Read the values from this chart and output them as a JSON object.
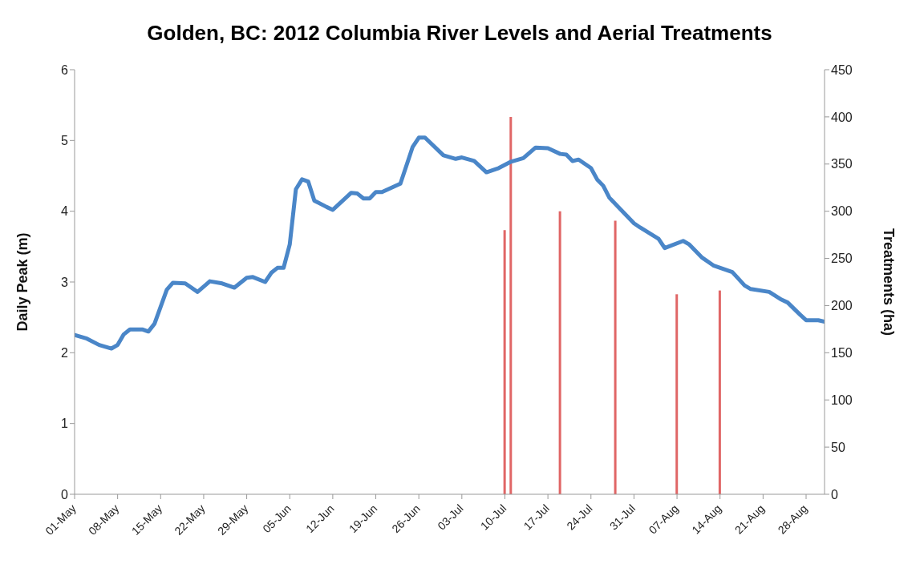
{
  "chart_data": {
    "type": "line",
    "title": "Golden, BC: 2012 Columbia River Levels and Aerial Treatments",
    "ylabel": "Daily Peak (m)",
    "y2label": "Treatments (ha)",
    "xlim": [
      "2012-05-01",
      "2012-08-31"
    ],
    "xticks": [
      {
        "value": "2012-05-01",
        "label": "01-May"
      },
      {
        "value": "2012-05-08",
        "label": "08-May"
      },
      {
        "value": "2012-05-15",
        "label": "15-May"
      },
      {
        "value": "2012-05-22",
        "label": "22-May"
      },
      {
        "value": "2012-05-29",
        "label": "29-May"
      },
      {
        "value": "2012-06-05",
        "label": "05-Jun"
      },
      {
        "value": "2012-06-12",
        "label": "12-Jun"
      },
      {
        "value": "2012-06-19",
        "label": "19-Jun"
      },
      {
        "value": "2012-06-26",
        "label": "26-Jun"
      },
      {
        "value": "2012-07-03",
        "label": "03-Jul"
      },
      {
        "value": "2012-07-10",
        "label": "10-Jul"
      },
      {
        "value": "2012-07-17",
        "label": "17-Jul"
      },
      {
        "value": "2012-07-24",
        "label": "24-Jul"
      },
      {
        "value": "2012-07-31",
        "label": "31-Jul"
      },
      {
        "value": "2012-08-07",
        "label": "07-Aug"
      },
      {
        "value": "2012-08-14",
        "label": "14-Aug"
      },
      {
        "value": "2012-08-21",
        "label": "21-Aug"
      },
      {
        "value": "2012-08-28",
        "label": "28-Aug"
      }
    ],
    "ylim": [
      0,
      6
    ],
    "yticks": [
      0,
      1,
      2,
      3,
      4,
      5,
      6
    ],
    "y2lim": [
      0,
      450
    ],
    "y2ticks": [
      0,
      50,
      100,
      150,
      200,
      250,
      300,
      350,
      400,
      450
    ],
    "series": [
      {
        "color": "#4a86c8",
        "x": [
          "2012-05-01",
          "2012-05-03",
          "2012-05-05",
          "2012-05-07",
          "2012-05-08",
          "2012-05-09",
          "2012-05-10",
          "2012-05-12",
          "2012-05-13",
          "2012-05-14",
          "2012-05-16",
          "2012-05-17",
          "2012-05-19",
          "2012-05-21",
          "2012-05-23",
          "2012-05-25",
          "2012-05-27",
          "2012-05-29",
          "2012-05-30",
          "2012-06-01",
          "2012-06-02",
          "2012-06-03",
          "2012-06-04",
          "2012-06-05",
          "2012-06-06",
          "2012-06-07",
          "2012-06-08",
          "2012-06-09",
          "2012-06-11",
          "2012-06-12",
          "2012-06-15",
          "2012-06-16",
          "2012-06-17",
          "2012-06-18",
          "2012-06-19",
          "2012-06-20",
          "2012-06-23",
          "2012-06-25",
          "2012-06-26",
          "2012-06-27",
          "2012-06-30",
          "2012-07-02",
          "2012-07-03",
          "2012-07-05",
          "2012-07-07",
          "2012-07-09",
          "2012-07-11",
          "2012-07-13",
          "2012-07-15",
          "2012-07-17",
          "2012-07-19",
          "2012-07-20",
          "2012-07-21",
          "2012-07-22",
          "2012-07-24",
          "2012-07-25",
          "2012-07-26",
          "2012-07-27",
          "2012-07-31",
          "2012-08-01",
          "2012-08-04",
          "2012-08-05",
          "2012-08-08",
          "2012-08-09",
          "2012-08-11",
          "2012-08-13",
          "2012-08-16",
          "2012-08-18",
          "2012-08-19",
          "2012-08-22",
          "2012-08-24",
          "2012-08-25",
          "2012-08-27",
          "2012-08-28",
          "2012-08-30",
          "2012-08-31"
        ],
        "values": [
          2.25,
          2.2,
          2.11,
          2.06,
          2.11,
          2.26,
          2.33,
          2.33,
          2.3,
          2.41,
          2.89,
          2.99,
          2.98,
          2.86,
          3.01,
          2.98,
          2.92,
          3.06,
          3.07,
          3.0,
          3.13,
          3.2,
          3.2,
          3.53,
          4.31,
          4.45,
          4.42,
          4.15,
          4.06,
          4.02,
          4.26,
          4.25,
          4.18,
          4.18,
          4.27,
          4.27,
          4.39,
          4.91,
          5.04,
          5.04,
          4.79,
          4.74,
          4.76,
          4.71,
          4.55,
          4.61,
          4.7,
          4.75,
          4.9,
          4.89,
          4.81,
          4.8,
          4.71,
          4.73,
          4.61,
          4.45,
          4.36,
          4.19,
          3.83,
          3.77,
          3.61,
          3.48,
          3.58,
          3.53,
          3.35,
          3.23,
          3.14,
          2.95,
          2.9,
          2.86,
          2.75,
          2.71,
          2.54,
          2.46,
          2.46,
          2.44
        ]
      },
      {
        "type": "bar",
        "axis": "y2",
        "color": "#e06666",
        "x": [
          "2012-07-10",
          "2012-07-11",
          "2012-07-19",
          "2012-07-28",
          "2012-08-07",
          "2012-08-14"
        ],
        "values": [
          280,
          400,
          300,
          290,
          212,
          216
        ]
      }
    ]
  }
}
